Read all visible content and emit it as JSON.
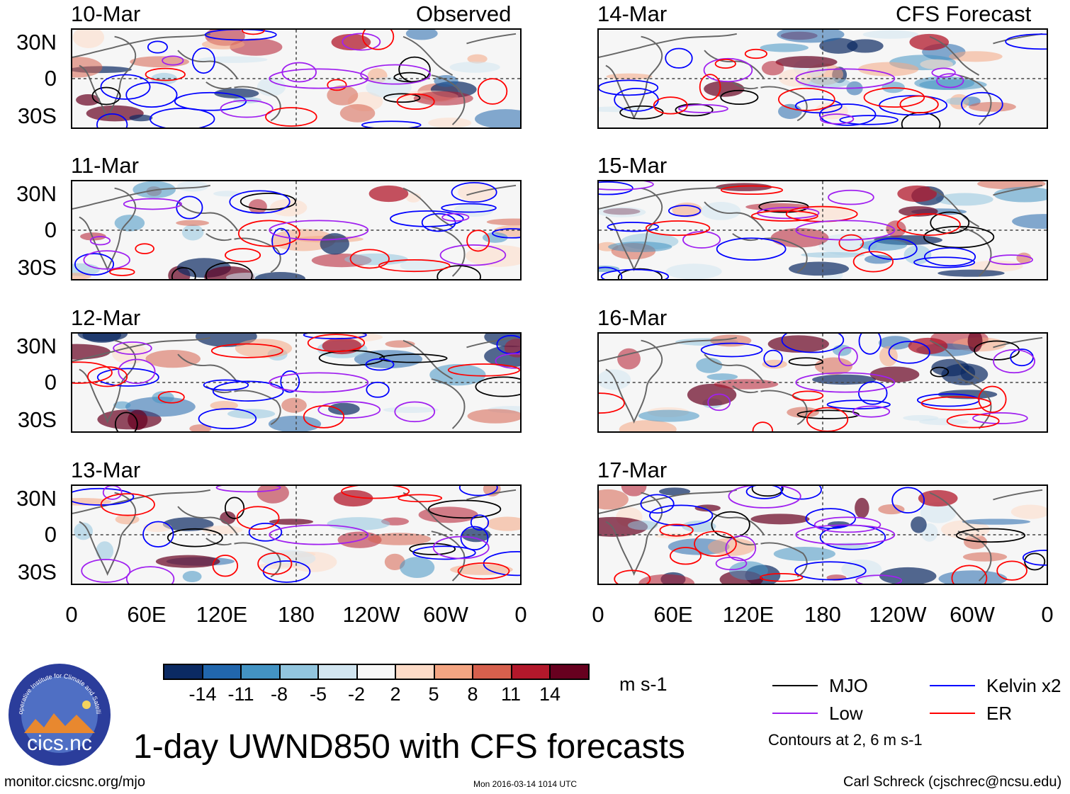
{
  "header": {
    "left_label": "Observed",
    "right_label": "CFS Forecast"
  },
  "panels": [
    {
      "date": "10-Mar",
      "column": "observed"
    },
    {
      "date": "11-Mar",
      "column": "observed"
    },
    {
      "date": "12-Mar",
      "column": "observed"
    },
    {
      "date": "13-Mar",
      "column": "observed"
    },
    {
      "date": "14-Mar",
      "column": "forecast"
    },
    {
      "date": "15-Mar",
      "column": "forecast"
    },
    {
      "date": "16-Mar",
      "column": "forecast"
    },
    {
      "date": "17-Mar",
      "column": "forecast"
    }
  ],
  "chart_data": {
    "type": "heatmap",
    "title": "1-day UWND850 with CFS forecasts",
    "variable": "850 hPa zonal wind (UWND850)",
    "units": "m s-1",
    "y_ticks": [
      "30N",
      "0",
      "30S"
    ],
    "x_ticks": [
      "0",
      "60E",
      "120E",
      "180",
      "120W",
      "60W",
      "0"
    ],
    "ylim": [
      -40,
      40
    ],
    "xlim": [
      0,
      360
    ],
    "colorbar": {
      "levels": [
        "-14",
        "-11",
        "-8",
        "-5",
        "-2",
        "2",
        "5",
        "8",
        "11",
        "14"
      ],
      "colors": [
        "#0b2a63",
        "#2166ac",
        "#4393c3",
        "#92c5de",
        "#d1e5f0",
        "#f7f7f7",
        "#fddbc7",
        "#f4a582",
        "#d6604d",
        "#b2182b",
        "#67001f"
      ]
    },
    "legend": [
      {
        "label": "MJO",
        "color": "#000000"
      },
      {
        "label": "Kelvin x2",
        "color": "#0000ff"
      },
      {
        "label": "Low",
        "color": "#a020f0"
      },
      {
        "label": "ER",
        "color": "#ff0000"
      }
    ],
    "contour_note": "Contours at 2, 6 m s-1"
  },
  "footer": {
    "logo_text": "cics.nc",
    "logo_ring_text": "Cooperative Institute for Climate and Satellites",
    "url": "monitor.cicsnc.org/mjo",
    "timestamp": "Mon 2016-03-14 1014 UTC",
    "author": "Carl Schreck (cjschrec@ncsu.edu)"
  }
}
